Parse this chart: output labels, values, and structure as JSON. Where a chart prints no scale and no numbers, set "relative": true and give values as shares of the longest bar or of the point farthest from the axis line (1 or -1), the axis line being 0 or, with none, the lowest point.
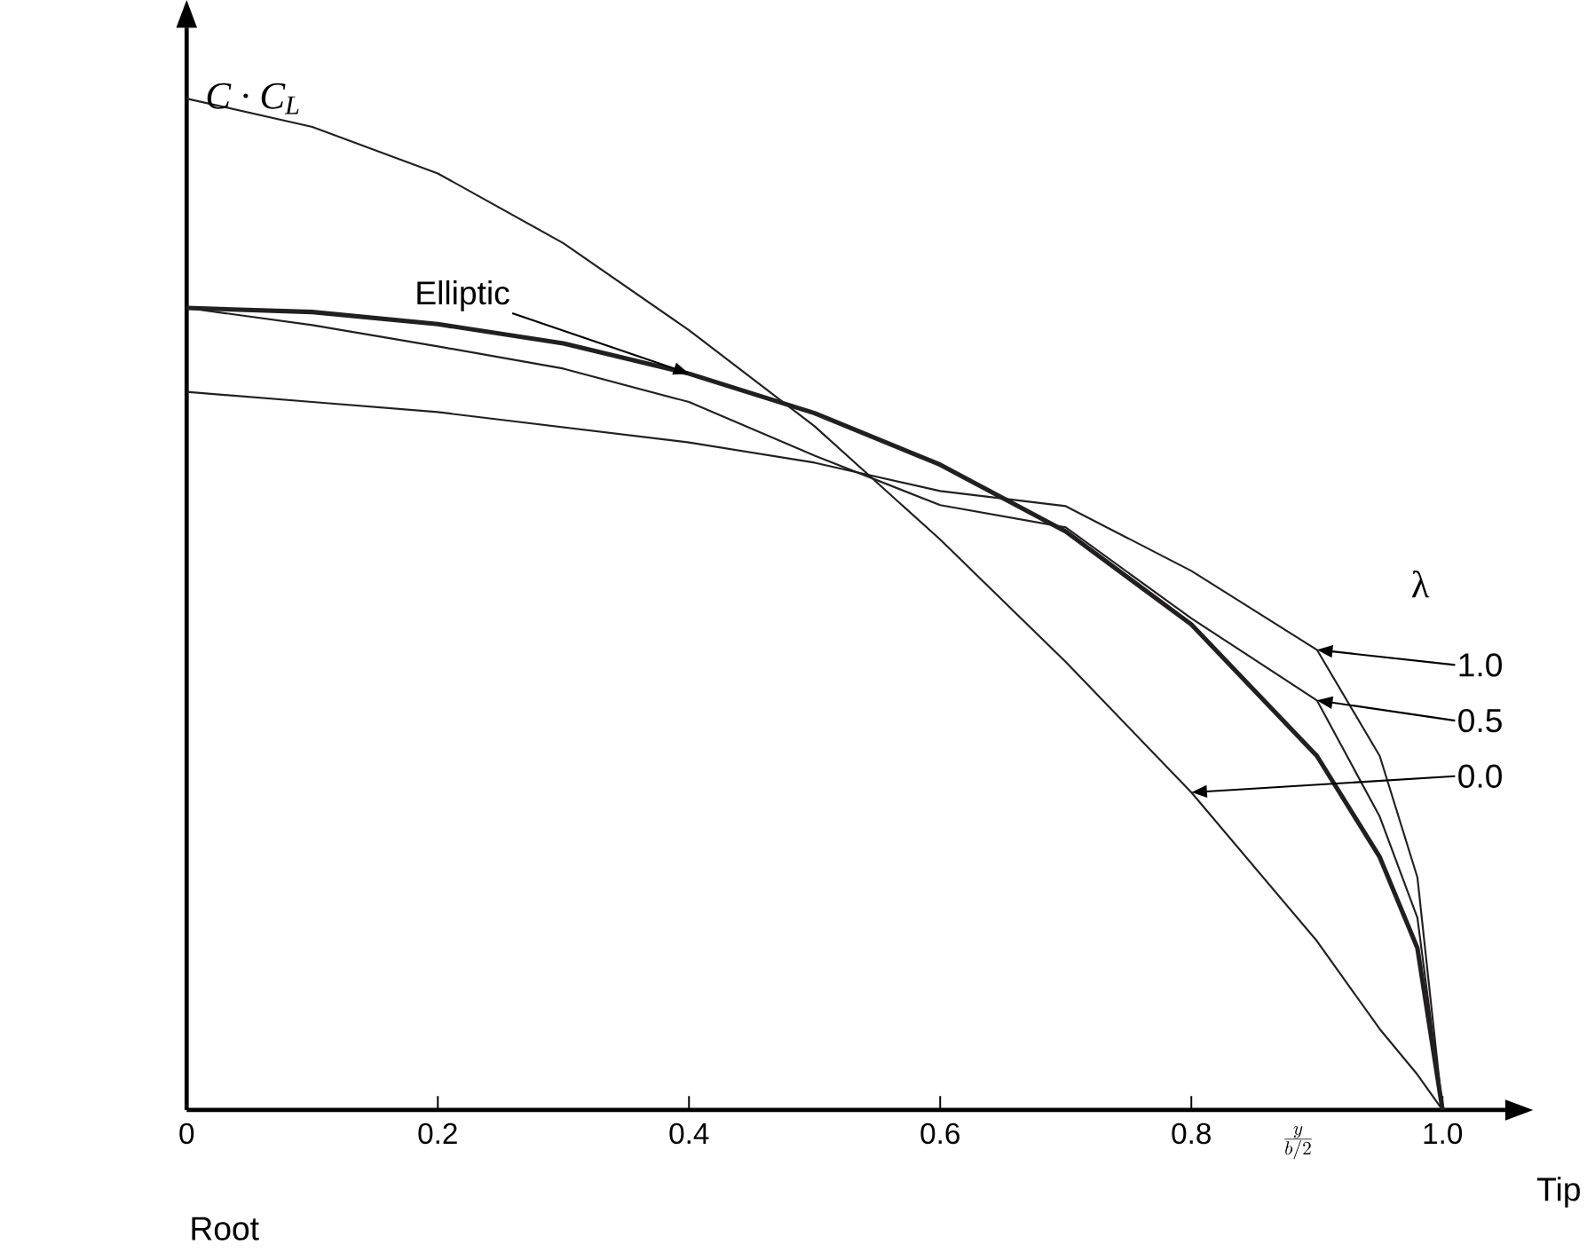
{
  "chart_data": {
    "type": "line",
    "relative": true,
    "ylabel": "C · C$_{L}$",
    "xlabel": "\\frac{y}{b/2}",
    "legend_title": "λ",
    "xlim": [
      0,
      1.05
    ],
    "xticks": [
      {
        "value": 0,
        "label": "0"
      },
      0.2,
      0.4,
      0.6,
      0.8,
      {
        "value": 1,
        "label": "1.0"
      }
    ],
    "x": [
      0,
      0.1,
      0.2,
      0.3,
      0.4,
      0.5,
      0.6,
      0.7,
      0.8,
      0.9,
      0.95,
      0.98,
      1.0
    ],
    "series": [
      {
        "name": "Elliptic",
        "color": "#231f20",
        "values": [
          0.793,
          0.789,
          0.777,
          0.758,
          0.728,
          0.689,
          0.638,
          0.572,
          0.48,
          0.35,
          0.25,
          0.16,
          0
        ]
      },
      {
        "name": "1.0",
        "color": "#231f20",
        "values": [
          0.71,
          0.7,
          0.69,
          0.675,
          0.66,
          0.64,
          0.612,
          0.597,
          0.533,
          0.455,
          0.35,
          0.23,
          0
        ]
      },
      {
        "name": "0.5",
        "color": "#231f20",
        "values": [
          0.793,
          0.776,
          0.755,
          0.733,
          0.7,
          0.647,
          0.598,
          0.576,
          0.486,
          0.405,
          0.29,
          0.19,
          0
        ]
      },
      {
        "name": "0.0",
        "color": "#231f20",
        "values": [
          1.0,
          0.972,
          0.926,
          0.857,
          0.771,
          0.676,
          0.564,
          0.443,
          0.314,
          0.167,
          0.08,
          0.035,
          0
        ]
      }
    ],
    "annotations": [
      "Root",
      "Tip"
    ]
  }
}
